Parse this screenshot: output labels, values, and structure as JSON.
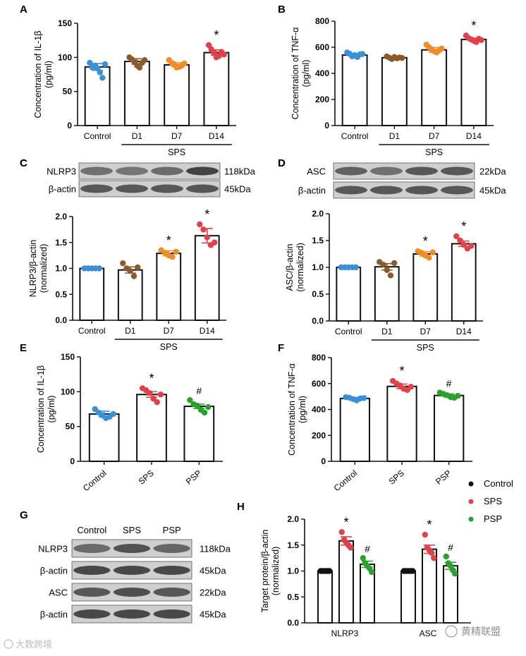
{
  "panels": [
    {
      "letter": "A",
      "ylabel_lines": [
        "Concentration of IL-1β",
        "(pg/ml)"
      ],
      "yticks": [
        "0",
        "50",
        "100",
        "150"
      ],
      "ylim": [
        0,
        150
      ],
      "categories": [
        "Control",
        "D1",
        "D7",
        "D14"
      ],
      "group_label": "SPS",
      "group_span": [
        1,
        3
      ],
      "means": [
        86,
        94,
        89,
        107
      ],
      "sems": [
        5,
        4,
        3,
        4
      ],
      "sig": [
        "",
        "",
        "",
        "*"
      ],
      "dot_colors": [
        "#3a8fd9",
        "#8b5a2b",
        "#f28c28",
        "#e0414a"
      ],
      "points": [
        [
          92,
          85,
          88,
          84,
          78,
          70,
          90
        ],
        [
          100,
          97,
          93,
          88,
          85,
          92,
          96
        ],
        [
          96,
          92,
          90,
          85,
          86,
          88,
          91
        ],
        [
          118,
          112,
          107,
          100,
          102,
          108,
          104
        ]
      ]
    },
    {
      "letter": "B",
      "ylabel_lines": [
        "Concentration of TNF-α",
        "(pg/ml)"
      ],
      "yticks": [
        "0",
        "200",
        "400",
        "600",
        "800"
      ],
      "ylim": [
        0,
        800
      ],
      "categories": [
        "Control",
        "D1",
        "D7",
        "D14"
      ],
      "group_label": "SPS",
      "group_span": [
        1,
        3
      ],
      "means": [
        540,
        520,
        580,
        660
      ],
      "sems": [
        10,
        8,
        18,
        10
      ],
      "sig": [
        "",
        "",
        "",
        "*"
      ],
      "dot_colors": [
        "#3a8fd9",
        "#8b5a2b",
        "#f28c28",
        "#e0414a"
      ],
      "points": [
        [
          560,
          550,
          530,
          540,
          525,
          545,
          548
        ],
        [
          530,
          520,
          510,
          525,
          515,
          522,
          518
        ],
        [
          620,
          600,
          585,
          570,
          560,
          575,
          590
        ],
        [
          690,
          670,
          660,
          650,
          640,
          665,
          655
        ]
      ]
    },
    {
      "letter": "C",
      "ylabel_lines": [
        "NLRP3/β-actin",
        "(normalized)"
      ],
      "yticks": [
        "0.0",
        "0.5",
        "1.0",
        "1.5",
        "2.0"
      ],
      "ylim": [
        0,
        2
      ],
      "categories": [
        "Control",
        "D1",
        "D7",
        "D14"
      ],
      "group_label": "SPS",
      "group_span": [
        1,
        3
      ],
      "means": [
        1.0,
        0.97,
        1.29,
        1.63
      ],
      "sems": [
        0,
        0.06,
        0.05,
        0.14
      ],
      "sig": [
        "",
        "",
        "*",
        "*"
      ],
      "dot_colors": [
        "#3a8fd9",
        "#8b5a2b",
        "#f28c28",
        "#e0414a"
      ],
      "points": [
        [
          1,
          1,
          1,
          1,
          1
        ],
        [
          1.1,
          1.0,
          0.95,
          0.85,
          1.02
        ],
        [
          1.35,
          1.3,
          1.25,
          1.22,
          1.32
        ],
        [
          1.85,
          1.75,
          1.6,
          1.45,
          1.5
        ]
      ]
    },
    {
      "letter": "D",
      "ylabel_lines": [
        "ASC/β-actin",
        "(normalized)"
      ],
      "yticks": [
        "0.0",
        "0.5",
        "1.0",
        "1.5",
        "2.0"
      ],
      "ylim": [
        0,
        2
      ],
      "categories": [
        "Control",
        "D1",
        "D7",
        "D14"
      ],
      "group_label": "SPS",
      "group_span": [
        1,
        3
      ],
      "means": [
        1.0,
        1.01,
        1.25,
        1.44
      ],
      "sems": [
        0,
        0.06,
        0.04,
        0.05
      ],
      "sig": [
        "",
        "",
        "*",
        "*"
      ],
      "dot_colors": [
        "#3a8fd9",
        "#8b5a2b",
        "#f28c28",
        "#e0414a"
      ],
      "points": [
        [
          1,
          1,
          1,
          1,
          1
        ],
        [
          1.1,
          1.05,
          0.95,
          0.85,
          1.08
        ],
        [
          1.3,
          1.27,
          1.22,
          1.18,
          1.28
        ],
        [
          1.58,
          1.5,
          1.42,
          1.35,
          1.4
        ]
      ]
    },
    {
      "letter": "E",
      "ylabel_lines": [
        "Concentration of IL-1β",
        "(pg/ml)"
      ],
      "yticks": [
        "0",
        "50",
        "100",
        "150"
      ],
      "ylim": [
        0,
        150
      ],
      "categories": [
        "Control",
        "SPS",
        "PSP"
      ],
      "rotate_labels": true,
      "means": [
        68,
        96,
        79
      ],
      "sems": [
        4,
        4,
        3
      ],
      "sig": [
        "",
        "*",
        "#"
      ],
      "dot_colors": [
        "#3a8fd9",
        "#e0414a",
        "#2ca02c"
      ],
      "points": [
        [
          75,
          70,
          66,
          62,
          64,
          68
        ],
        [
          105,
          102,
          98,
          90,
          85,
          96
        ],
        [
          88,
          82,
          80,
          74,
          70,
          78
        ]
      ]
    },
    {
      "letter": "F",
      "ylabel_lines": [
        "Concentration of TNF-α",
        "(pg/ml)"
      ],
      "yticks": [
        "0",
        "200",
        "400",
        "600",
        "800"
      ],
      "ylim": [
        0,
        800
      ],
      "categories": [
        "Control",
        "SPS",
        "PSP"
      ],
      "rotate_labels": true,
      "means": [
        485,
        578,
        508
      ],
      "sems": [
        8,
        18,
        12
      ],
      "sig": [
        "",
        "*",
        "#"
      ],
      "dot_colors": [
        "#3a8fd9",
        "#e0414a",
        "#2ca02c"
      ],
      "points": [
        [
          495,
          490,
          480,
          470,
          485,
          488
        ],
        [
          620,
          600,
          585,
          560,
          550,
          575
        ],
        [
          530,
          520,
          510,
          495,
          490,
          505
        ]
      ]
    },
    {
      "letter": "H",
      "ylabel_lines": [
        "Target protein/β-actin",
        "(normalized)"
      ],
      "yticks": [
        "0.0",
        "0.5",
        "1.0",
        "1.5",
        "2.0"
      ],
      "ylim": [
        0,
        2
      ],
      "categories": [
        "NLRP3",
        "ASC"
      ],
      "means": [
        [
          1.0,
          1.58,
          1.13
        ],
        [
          1.0,
          1.42,
          1.1
        ]
      ],
      "sems": [
        [
          0,
          0.08,
          0.06
        ],
        [
          0,
          0.08,
          0.07
        ]
      ],
      "sig": [
        [
          "",
          "*",
          "#"
        ],
        [
          "",
          "*",
          "#"
        ]
      ],
      "dot_colors": [
        "#111111",
        "#e0414a",
        "#2ca02c"
      ],
      "points": [
        [
          [
            1,
            1,
            1,
            1,
            1
          ],
          [
            1.75,
            1.6,
            1.55,
            1.5,
            1.45
          ],
          [
            1.25,
            1.15,
            1.1,
            1.05,
            0.98
          ]
        ],
        [
          [
            1,
            1,
            1,
            1,
            1
          ],
          [
            1.7,
            1.45,
            1.4,
            1.35,
            1.25
          ],
          [
            1.28,
            1.15,
            1.1,
            1.02,
            0.95
          ]
        ]
      ]
    }
  ],
  "legend": [
    {
      "label": "Control",
      "color": "#111111"
    },
    {
      "label": "SPS",
      "color": "#e0414a"
    },
    {
      "label": "PSP",
      "color": "#2ca02c"
    }
  ],
  "blots": [
    {
      "letter": "C",
      "rows": [
        {
          "name": "NLRP3",
          "kda": "118kDa"
        },
        {
          "name": "β-actin",
          "kda": "45kDa"
        }
      ]
    },
    {
      "letter": "D",
      "rows": [
        {
          "name": "ASC",
          "kda": "22kDa"
        },
        {
          "name": "β-actin",
          "kda": "45kDa"
        }
      ]
    },
    {
      "letter": "G",
      "header": [
        "Control",
        "SPS",
        "PSP"
      ],
      "rows": [
        {
          "name": "NLRP3",
          "kda": "118kDa"
        },
        {
          "name": "β-actin",
          "kda": "45kDa"
        },
        {
          "name": "ASC",
          "kda": "22kDa"
        },
        {
          "name": "β-actin",
          "kda": "45kDa"
        }
      ]
    }
  ],
  "watermarks": {
    "left": "大数跨境",
    "right": "黄精联盟"
  }
}
